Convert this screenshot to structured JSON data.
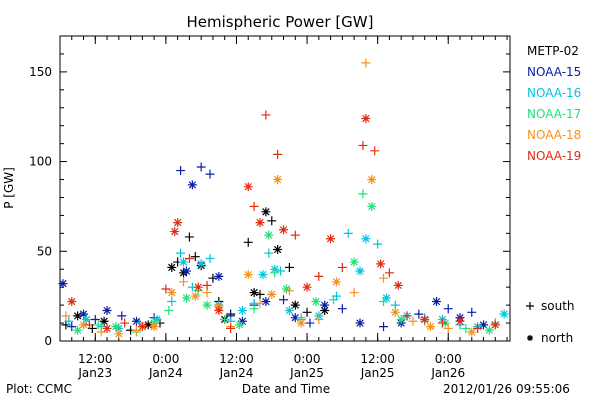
{
  "chart_data": {
    "type": "scatter",
    "title": "Hemispheric Power [GW]",
    "xlabel": "Date and Time",
    "ylabel": "P [GW]",
    "ylim": [
      0,
      170
    ],
    "yticks": [
      0,
      50,
      100,
      150
    ],
    "xlim": [
      "2012-01-23T06:00",
      "2012-01-26T10:30"
    ],
    "xticks": [
      {
        "x": "2012-01-23T12:00",
        "time": "12:00",
        "date": "Jan23"
      },
      {
        "x": "2012-01-24T00:00",
        "time": "0:00",
        "date": "Jan24"
      },
      {
        "x": "2012-01-24T12:00",
        "time": "12:00",
        "date": "Jan24"
      },
      {
        "x": "2012-01-25T00:00",
        "time": "0:00",
        "date": "Jan25"
      },
      {
        "x": "2012-01-25T12:00",
        "time": "12:00",
        "date": "Jan25"
      },
      {
        "x": "2012-01-26T00:00",
        "time": "0:00",
        "date": "Jan26"
      }
    ],
    "legend_position": "right",
    "marker_legend": [
      {
        "marker": "+",
        "label": "south"
      },
      {
        "marker": "*",
        "label": "north"
      }
    ],
    "series": [
      {
        "name": "METP-02",
        "color": "#000000",
        "points": [
          [
            "2012-01-23T07:00",
            9,
            "+"
          ],
          [
            "2012-01-23T09:00",
            14,
            "*"
          ],
          [
            "2012-01-23T11:30",
            7,
            "+"
          ],
          [
            "2012-01-23T13:30",
            11,
            "*"
          ],
          [
            "2012-01-23T18:00",
            6,
            "+"
          ],
          [
            "2012-01-23T21:00",
            9,
            "*"
          ],
          [
            "2012-01-23T23:00",
            10,
            "+"
          ],
          [
            "2012-01-24T01:00",
            41,
            "*"
          ],
          [
            "2012-01-24T02:00",
            44,
            "+"
          ],
          [
            "2012-01-24T03:00",
            38,
            "*"
          ],
          [
            "2012-01-24T04:00",
            58,
            "+"
          ],
          [
            "2012-01-24T05:00",
            47,
            "+"
          ],
          [
            "2012-01-24T06:00",
            42,
            "*"
          ],
          [
            "2012-01-24T08:00",
            35,
            "+"
          ],
          [
            "2012-01-24T09:00",
            22,
            "+"
          ],
          [
            "2012-01-24T10:00",
            12,
            "*"
          ],
          [
            "2012-01-24T11:00",
            15,
            "+"
          ],
          [
            "2012-01-24T14:00",
            55,
            "+"
          ],
          [
            "2012-01-24T15:00",
            27,
            "*"
          ],
          [
            "2012-01-24T16:00",
            26,
            "+"
          ],
          [
            "2012-01-24T17:00",
            72,
            "*"
          ],
          [
            "2012-01-24T18:00",
            67,
            "+"
          ],
          [
            "2012-01-24T19:00",
            51,
            "*"
          ],
          [
            "2012-01-24T21:00",
            41,
            "+"
          ],
          [
            "2012-01-24T22:00",
            20,
            "*"
          ],
          [
            "2012-01-25T00:00",
            16,
            "+"
          ],
          [
            "2012-01-25T03:00",
            17,
            "*"
          ]
        ]
      },
      {
        "name": "NOAA-15",
        "color": "#0a1ea8",
        "points": [
          [
            "2012-01-23T06:30",
            32,
            "*"
          ],
          [
            "2012-01-23T08:00",
            8,
            "+"
          ],
          [
            "2012-01-23T10:00",
            15,
            "*"
          ],
          [
            "2012-01-23T12:00",
            12,
            "+"
          ],
          [
            "2012-01-23T14:00",
            17,
            "*"
          ],
          [
            "2012-01-23T16:30",
            14,
            "+"
          ],
          [
            "2012-01-23T19:00",
            11,
            "*"
          ],
          [
            "2012-01-23T22:00",
            13,
            "+"
          ],
          [
            "2012-01-24T02:30",
            95,
            "+"
          ],
          [
            "2012-01-24T03:30",
            39,
            "*"
          ],
          [
            "2012-01-24T04:30",
            87,
            "*"
          ],
          [
            "2012-01-24T06:00",
            97,
            "+"
          ],
          [
            "2012-01-24T07:30",
            93,
            "+"
          ],
          [
            "2012-01-24T09:00",
            36,
            "*"
          ],
          [
            "2012-01-24T11:00",
            14,
            "+"
          ],
          [
            "2012-01-24T13:00",
            11,
            "*"
          ],
          [
            "2012-01-24T15:00",
            20,
            "+"
          ],
          [
            "2012-01-24T17:00",
            22,
            "*"
          ],
          [
            "2012-01-24T20:00",
            23,
            "+"
          ],
          [
            "2012-01-24T22:00",
            13,
            "*"
          ],
          [
            "2012-01-25T00:30",
            10,
            "+"
          ],
          [
            "2012-01-25T03:00",
            20,
            "*"
          ],
          [
            "2012-01-25T06:00",
            18,
            "+"
          ],
          [
            "2012-01-25T09:00",
            10,
            "*"
          ],
          [
            "2012-01-25T13:00",
            8,
            "+"
          ],
          [
            "2012-01-25T16:00",
            10,
            "*"
          ],
          [
            "2012-01-25T19:00",
            15,
            "+"
          ],
          [
            "2012-01-25T22:00",
            22,
            "*"
          ],
          [
            "2012-01-26T00:00",
            18,
            "+"
          ],
          [
            "2012-01-26T02:00",
            13,
            "*"
          ],
          [
            "2012-01-26T04:00",
            16,
            "+"
          ],
          [
            "2012-01-26T06:00",
            9,
            "*"
          ]
        ]
      },
      {
        "name": "NOAA-16",
        "color": "#00c4e0",
        "points": [
          [
            "2012-01-23T07:30",
            11,
            "+"
          ],
          [
            "2012-01-23T10:30",
            12,
            "*"
          ],
          [
            "2012-01-23T13:00",
            8,
            "+"
          ],
          [
            "2012-01-23T16:00",
            7,
            "*"
          ],
          [
            "2012-01-23T19:30",
            10,
            "+"
          ],
          [
            "2012-01-23T22:30",
            12,
            "*"
          ],
          [
            "2012-01-24T01:00",
            22,
            "+"
          ],
          [
            "2012-01-24T02:30",
            49,
            "+"
          ],
          [
            "2012-01-24T03:00",
            44,
            "*"
          ],
          [
            "2012-01-24T04:30",
            30,
            "+"
          ],
          [
            "2012-01-24T06:00",
            43,
            "*"
          ],
          [
            "2012-01-24T07:30",
            46,
            "+"
          ],
          [
            "2012-01-24T09:00",
            20,
            "*"
          ],
          [
            "2012-01-24T11:00",
            11,
            "+"
          ],
          [
            "2012-01-24T13:00",
            17,
            "*"
          ],
          [
            "2012-01-24T15:00",
            21,
            "+"
          ],
          [
            "2012-01-24T16:30",
            37,
            "*"
          ],
          [
            "2012-01-24T17:30",
            49,
            "+"
          ],
          [
            "2012-01-24T18:30",
            40,
            "*"
          ],
          [
            "2012-01-24T19:30",
            39,
            "+"
          ],
          [
            "2012-01-24T21:00",
            17,
            "*"
          ],
          [
            "2012-01-24T23:00",
            12,
            "+"
          ],
          [
            "2012-01-25T02:00",
            14,
            "*"
          ],
          [
            "2012-01-25T05:00",
            25,
            "+"
          ],
          [
            "2012-01-25T07:00",
            60,
            "+"
          ],
          [
            "2012-01-25T09:00",
            39,
            "*"
          ],
          [
            "2012-01-25T10:00",
            57,
            "*"
          ],
          [
            "2012-01-25T12:00",
            54,
            "+"
          ],
          [
            "2012-01-25T13:30",
            24,
            "*"
          ],
          [
            "2012-01-25T15:00",
            20,
            "+"
          ],
          [
            "2012-01-25T17:00",
            14,
            "*"
          ],
          [
            "2012-01-25T20:00",
            13,
            "+"
          ],
          [
            "2012-01-25T23:00",
            12,
            "*"
          ],
          [
            "2012-01-26T02:00",
            9,
            "+"
          ],
          [
            "2012-01-26T05:00",
            8,
            "*"
          ],
          [
            "2012-01-26T08:00",
            10,
            "+"
          ],
          [
            "2012-01-26T09:30",
            15,
            "*"
          ]
        ]
      },
      {
        "name": "NOAA-17",
        "color": "#22e07a",
        "points": [
          [
            "2012-01-23T09:00",
            6,
            "*"
          ],
          [
            "2012-01-23T12:30",
            9,
            "+"
          ],
          [
            "2012-01-23T15:30",
            8,
            "*"
          ],
          [
            "2012-01-23T19:00",
            5,
            "+"
          ],
          [
            "2012-01-23T22:00",
            10,
            "*"
          ],
          [
            "2012-01-24T00:30",
            17,
            "+"
          ],
          [
            "2012-01-24T03:30",
            24,
            "*"
          ],
          [
            "2012-01-24T05:30",
            28,
            "+"
          ],
          [
            "2012-01-24T07:00",
            20,
            "*"
          ],
          [
            "2012-01-24T10:00",
            12,
            "+"
          ],
          [
            "2012-01-24T12:30",
            9,
            "*"
          ],
          [
            "2012-01-24T15:00",
            18,
            "+"
          ],
          [
            "2012-01-24T17:30",
            59,
            "*"
          ],
          [
            "2012-01-24T18:30",
            38,
            "+"
          ],
          [
            "2012-01-24T20:30",
            29,
            "*"
          ],
          [
            "2012-01-24T23:00",
            13,
            "+"
          ],
          [
            "2012-01-25T01:30",
            22,
            "*"
          ],
          [
            "2012-01-25T04:30",
            23,
            "+"
          ],
          [
            "2012-01-25T08:00",
            44,
            "*"
          ],
          [
            "2012-01-25T09:30",
            82,
            "+"
          ],
          [
            "2012-01-25T11:00",
            75,
            "*"
          ],
          [
            "2012-01-25T13:00",
            22,
            "+"
          ],
          [
            "2012-01-25T16:00",
            12,
            "*"
          ],
          [
            "2012-01-25T20:00",
            11,
            "+"
          ],
          [
            "2012-01-25T23:30",
            10,
            "*"
          ],
          [
            "2012-01-26T03:00",
            7,
            "+"
          ],
          [
            "2012-01-26T07:00",
            6,
            "*"
          ]
        ]
      },
      {
        "name": "NOAA-18",
        "color": "#f5921e",
        "points": [
          [
            "2012-01-23T07:00",
            14,
            "+"
          ],
          [
            "2012-01-23T10:00",
            9,
            "*"
          ],
          [
            "2012-01-23T13:00",
            5,
            "+"
          ],
          [
            "2012-01-23T16:00",
            4,
            "*"
          ],
          [
            "2012-01-23T19:00",
            6,
            "+"
          ],
          [
            "2012-01-23T22:00",
            8,
            "*"
          ],
          [
            "2012-01-24T01:00",
            27,
            "*"
          ],
          [
            "2012-01-24T03:00",
            33,
            "+"
          ],
          [
            "2012-01-24T05:00",
            25,
            "*"
          ],
          [
            "2012-01-24T07:00",
            27,
            "+"
          ],
          [
            "2012-01-24T09:00",
            19,
            "*"
          ],
          [
            "2012-01-24T11:00",
            8,
            "+"
          ],
          [
            "2012-01-24T14:00",
            37,
            "*"
          ],
          [
            "2012-01-24T16:00",
            21,
            "+"
          ],
          [
            "2012-01-24T18:00",
            26,
            "*"
          ],
          [
            "2012-01-24T19:00",
            90,
            "*"
          ],
          [
            "2012-01-24T21:00",
            28,
            "+"
          ],
          [
            "2012-01-24T23:00",
            10,
            "*"
          ],
          [
            "2012-01-25T02:00",
            12,
            "+"
          ],
          [
            "2012-01-25T05:00",
            33,
            "*"
          ],
          [
            "2012-01-25T08:00",
            27,
            "+"
          ],
          [
            "2012-01-25T10:00",
            155,
            "+"
          ],
          [
            "2012-01-25T11:00",
            90,
            "*"
          ],
          [
            "2012-01-25T13:00",
            35,
            "+"
          ],
          [
            "2012-01-25T15:00",
            16,
            "*"
          ],
          [
            "2012-01-25T18:00",
            11,
            "+"
          ],
          [
            "2012-01-25T21:00",
            8,
            "*"
          ],
          [
            "2012-01-26T00:00",
            7,
            "+"
          ],
          [
            "2012-01-26T04:00",
            5,
            "*"
          ],
          [
            "2012-01-26T08:00",
            9,
            "+"
          ]
        ]
      },
      {
        "name": "NOAA-19",
        "color": "#e32c10",
        "points": [
          [
            "2012-01-23T08:00",
            22,
            "*"
          ],
          [
            "2012-01-23T11:00",
            9,
            "+"
          ],
          [
            "2012-01-23T14:00",
            7,
            "*"
          ],
          [
            "2012-01-23T17:00",
            10,
            "+"
          ],
          [
            "2012-01-23T20:00",
            8,
            "*"
          ],
          [
            "2012-01-24T00:00",
            29,
            "+"
          ],
          [
            "2012-01-24T01:30",
            61,
            "*"
          ],
          [
            "2012-01-24T02:00",
            66,
            "*"
          ],
          [
            "2012-01-24T04:00",
            46,
            "+"
          ],
          [
            "2012-01-24T05:30",
            30,
            "*"
          ],
          [
            "2012-01-24T07:00",
            31,
            "+"
          ],
          [
            "2012-01-24T09:00",
            17,
            "*"
          ],
          [
            "2012-01-24T11:00",
            7,
            "+"
          ],
          [
            "2012-01-24T14:00",
            86,
            "*"
          ],
          [
            "2012-01-24T15:00",
            75,
            "+"
          ],
          [
            "2012-01-24T16:00",
            66,
            "*"
          ],
          [
            "2012-01-24T17:00",
            126,
            "+"
          ],
          [
            "2012-01-24T19:00",
            104,
            "+"
          ],
          [
            "2012-01-24T20:00",
            62,
            "*"
          ],
          [
            "2012-01-24T22:00",
            59,
            "+"
          ],
          [
            "2012-01-25T00:00",
            30,
            "*"
          ],
          [
            "2012-01-25T02:00",
            36,
            "+"
          ],
          [
            "2012-01-25T04:00",
            57,
            "*"
          ],
          [
            "2012-01-25T06:00",
            41,
            "+"
          ],
          [
            "2012-01-25T09:30",
            109,
            "+"
          ],
          [
            "2012-01-25T10:00",
            124,
            "*"
          ],
          [
            "2012-01-25T11:30",
            106,
            "+"
          ],
          [
            "2012-01-25T12:30",
            43,
            "*"
          ],
          [
            "2012-01-25T14:00",
            38,
            "+"
          ],
          [
            "2012-01-25T15:30",
            31,
            "*"
          ],
          [
            "2012-01-25T17:00",
            14,
            "+"
          ],
          [
            "2012-01-25T20:00",
            12,
            "*"
          ],
          [
            "2012-01-25T23:00",
            10,
            "+"
          ],
          [
            "2012-01-26T02:00",
            11,
            "*"
          ],
          [
            "2012-01-26T05:00",
            7,
            "+"
          ],
          [
            "2012-01-26T08:00",
            9,
            "*"
          ]
        ]
      }
    ]
  },
  "footer": {
    "left": "Plot: CCMC",
    "right": "2012/01/26 09:55:06"
  }
}
